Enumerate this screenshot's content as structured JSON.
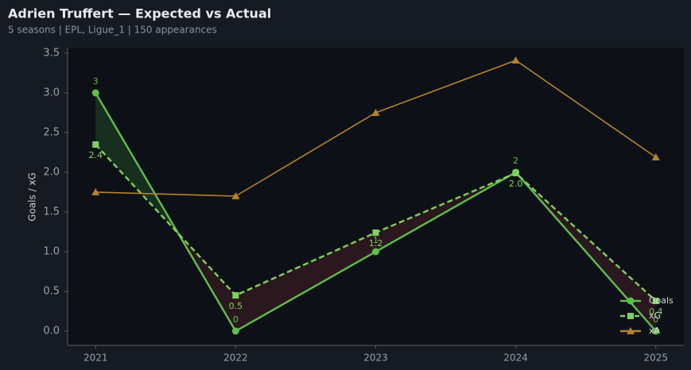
{
  "chart_data": {
    "type": "line",
    "title": "Adrien Truffert — Expected vs Actual",
    "subtitle": "5 seasons | EPL, Ligue_1 | 150 appearances",
    "ylabel": "Goals / xG",
    "x": [
      2021,
      2022,
      2023,
      2024,
      2025
    ],
    "xlim": [
      2020.8,
      2025.2
    ],
    "xticks": [
      2021,
      2022,
      2023,
      2024,
      2025
    ],
    "ylim": [
      -0.18,
      3.57
    ],
    "yticks": [
      {
        "value": 0,
        "label": "0.0"
      },
      0.5,
      {
        "value": 1,
        "label": "1.0"
      },
      1.5,
      {
        "value": 2,
        "label": "2.0"
      },
      2.5,
      {
        "value": 3,
        "label": "3.0"
      },
      3.5
    ],
    "legend": "lower right",
    "series": [
      {
        "name": "Goals",
        "color": "#5fbf4a",
        "marker": "circle",
        "dash": false,
        "values": [
          3,
          0,
          1,
          2,
          0
        ],
        "labels_pos": "above"
      },
      {
        "name": "xG",
        "color": "#7fd05e",
        "marker": "square",
        "dash": true,
        "values": [
          2.35,
          0.45,
          1.24,
          1.99,
          0.38
        ],
        "value_labels": [
          "2.4",
          "0.5",
          "1.2",
          "2.0",
          "0.4"
        ],
        "labels_pos": "below"
      },
      {
        "name": "xA",
        "color": "#b5832a",
        "marker": "triangle",
        "dash": false,
        "values": [
          1.75,
          1.7,
          2.75,
          3.41,
          2.19
        ]
      }
    ],
    "fill_colors": {
      "above": "#1a3320",
      "below": "#2e1a1f"
    }
  }
}
